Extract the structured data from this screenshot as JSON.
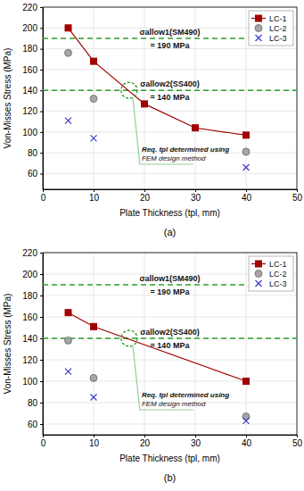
{
  "chart_data": [
    {
      "type": "line",
      "title": "(a)",
      "x_label": "Plate Thickness (tpl, mm)",
      "y_label": "Von-Misses Stress (MPa)",
      "xlim": [
        0,
        50
      ],
      "xticks": [
        0,
        10,
        20,
        30,
        40,
        50
      ],
      "ylim": [
        45,
        220
      ],
      "yticks": [
        60,
        80,
        100,
        120,
        140,
        160,
        180,
        200,
        220
      ],
      "grid": true,
      "legend": "upper right",
      "series": [
        {
          "name": "LC-1",
          "type": "line",
          "color": "#a00000",
          "marker": "square",
          "line_style": "solid",
          "x": [
            5,
            10,
            20,
            30,
            40
          ],
          "values": [
            200,
            168,
            127,
            104,
            97
          ]
        },
        {
          "name": "LC-2",
          "type": "scatter",
          "color": "#a6a6a6",
          "marker": "circle",
          "x": [
            5,
            10,
            40
          ],
          "values": [
            176,
            132,
            81
          ]
        },
        {
          "name": "LC-3",
          "type": "scatter",
          "color": "#3a3acc",
          "marker": "x",
          "x": [
            5,
            10,
            40
          ],
          "values": [
            111,
            94,
            66
          ]
        }
      ],
      "reference_lines": [
        {
          "value": 190,
          "color": "#2e9e2e",
          "line_style": "dashed",
          "label": [
            "σallow1(SM490)",
            "= 190 MPa"
          ]
        },
        {
          "value": 140,
          "color": "#2e9e2e",
          "line_style": "dashed",
          "label": [
            "σallow2(SS400)",
            "= 140 MPa"
          ]
        }
      ],
      "annotations": [
        {
          "x": 17,
          "y": 140,
          "color": "#2e9e2e",
          "text": [
            "Req. tpl determined using",
            "FEM design method"
          ]
        }
      ]
    },
    {
      "type": "line",
      "title": "(b)",
      "x_label": "Plate Thickness (tpl, mm)",
      "y_label": "Von-Misses Stress (MPa)",
      "xlim": [
        0,
        50
      ],
      "xticks": [
        0,
        10,
        20,
        30,
        40,
        50
      ],
      "ylim": [
        50,
        220
      ],
      "yticks": [
        60,
        80,
        100,
        120,
        140,
        160,
        180,
        200,
        220
      ],
      "grid": true,
      "legend": "upper right",
      "series": [
        {
          "name": "LC-1",
          "type": "line",
          "color": "#a00000",
          "marker": "square",
          "line_style": "solid",
          "x": [
            5,
            10,
            40
          ],
          "values": [
            164,
            151,
            100
          ]
        },
        {
          "name": "LC-2",
          "type": "scatter",
          "color": "#a6a6a6",
          "marker": "circle",
          "x": [
            5,
            10,
            40
          ],
          "values": [
            138,
            103,
            67
          ]
        },
        {
          "name": "LC-3",
          "type": "scatter",
          "color": "#3a3acc",
          "marker": "x",
          "x": [
            5,
            10,
            40
          ],
          "values": [
            109,
            85,
            63
          ]
        }
      ],
      "reference_lines": [
        {
          "value": 190,
          "color": "#2e9e2e",
          "line_style": "dashed",
          "label": [
            "σallow1(SM490)",
            "= 190 MPa"
          ]
        },
        {
          "value": 140,
          "color": "#2e9e2e",
          "line_style": "dashed",
          "label": [
            "σallow2(SS400)",
            "= 140 MPa"
          ]
        }
      ],
      "annotations": [
        {
          "x": 17,
          "y": 140,
          "color": "#2e9e2e",
          "text": [
            "Req. tpl determined using",
            "FEM design method"
          ]
        }
      ]
    }
  ]
}
